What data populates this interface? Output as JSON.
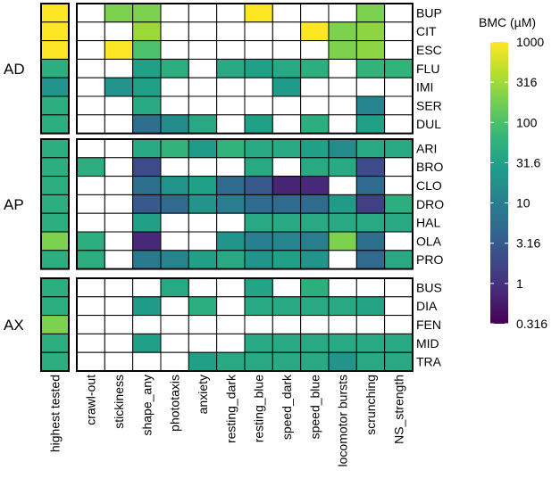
{
  "chart_data": {
    "type": "heatmap",
    "title": "",
    "legend_title": "BMC (µM)",
    "legend_ticks": [
      "1000",
      "316",
      "100",
      "31.6",
      "10",
      "3.16",
      "1",
      "0.316"
    ],
    "legend_tick_values": [
      1000,
      316,
      100,
      31.6,
      10,
      3.16,
      1,
      0.316
    ],
    "scale": {
      "type": "log10",
      "min": 0.316,
      "max": 1000,
      "palette": "viridis"
    },
    "legend_position": "right",
    "highest_tested_label": "highest tested",
    "columns": [
      "crawl-out",
      "stickiness",
      "shape_any",
      "phototaxis",
      "anxiety",
      "resting_dark",
      "resting_blue",
      "speed_dark",
      "speed_blue",
      "locomotor bursts",
      "scrunching",
      "NS_strength"
    ],
    "groups": [
      {
        "name": "AD",
        "rows": [
          {
            "chemical": "BUP",
            "highest_tested": 1000,
            "values": [
              null,
              200,
              200,
              null,
              null,
              null,
              1000,
              null,
              null,
              null,
              200,
              null
            ]
          },
          {
            "chemical": "CIT",
            "highest_tested": 1000,
            "values": [
              null,
              null,
              300,
              null,
              null,
              null,
              null,
              null,
              1000,
              200,
              250,
              null
            ]
          },
          {
            "chemical": "ESC",
            "highest_tested": 1000,
            "values": [
              null,
              1000,
              100,
              null,
              null,
              null,
              null,
              null,
              null,
              200,
              250,
              null
            ]
          },
          {
            "chemical": "FLU",
            "highest_tested": 50,
            "values": [
              null,
              null,
              30,
              50,
              null,
              40,
              30,
              40,
              50,
              null,
              60,
              60
            ]
          },
          {
            "chemical": "IMI",
            "highest_tested": 20,
            "values": [
              null,
              20,
              30,
              null,
              null,
              null,
              null,
              25,
              null,
              null,
              null,
              null
            ]
          },
          {
            "chemical": "SER",
            "highest_tested": 50,
            "values": [
              null,
              null,
              40,
              null,
              null,
              null,
              null,
              null,
              null,
              null,
              12,
              null
            ]
          },
          {
            "chemical": "DUL",
            "highest_tested": 50,
            "values": [
              null,
              null,
              6,
              15,
              40,
              null,
              30,
              null,
              50,
              null,
              30,
              null
            ]
          }
        ]
      },
      {
        "name": "AP",
        "rows": [
          {
            "chemical": "ARI",
            "highest_tested": 50,
            "values": [
              null,
              null,
              40,
              60,
              25,
              60,
              40,
              40,
              30,
              15,
              40,
              40
            ]
          },
          {
            "chemical": "BRO",
            "highest_tested": 50,
            "values": [
              50,
              null,
              2,
              null,
              null,
              null,
              40,
              null,
              40,
              40,
              2,
              null
            ]
          },
          {
            "chemical": "CLO",
            "highest_tested": 50,
            "values": [
              null,
              null,
              6,
              20,
              30,
              5,
              3,
              0.7,
              0.8,
              null,
              5,
              null
            ]
          },
          {
            "chemical": "DRO",
            "highest_tested": 50,
            "values": [
              null,
              null,
              3,
              5,
              20,
              10,
              5,
              5,
              5,
              25,
              1.5,
              50
            ]
          },
          {
            "chemical": "HAL",
            "highest_tested": 50,
            "values": [
              null,
              null,
              30,
              null,
              null,
              null,
              40,
              40,
              40,
              40,
              40,
              40
            ]
          },
          {
            "chemical": "OLA",
            "highest_tested": 200,
            "values": [
              50,
              null,
              0.8,
              null,
              null,
              20,
              10,
              12,
              10,
              200,
              6,
              null
            ]
          },
          {
            "chemical": "PRO",
            "highest_tested": 50,
            "values": [
              50,
              null,
              8,
              12,
              30,
              40,
              20,
              30,
              20,
              null,
              5,
              40
            ]
          }
        ]
      },
      {
        "name": "AX",
        "rows": [
          {
            "chemical": "BUS",
            "highest_tested": 50,
            "values": [
              null,
              null,
              null,
              40,
              null,
              null,
              35,
              null,
              50,
              null,
              null,
              null
            ]
          },
          {
            "chemical": "DIA",
            "highest_tested": 50,
            "values": [
              null,
              null,
              25,
              null,
              50,
              null,
              40,
              40,
              40,
              40,
              35,
              null
            ]
          },
          {
            "chemical": "FEN",
            "highest_tested": 200,
            "values": [
              null,
              null,
              null,
              null,
              null,
              null,
              null,
              null,
              null,
              null,
              null,
              null
            ]
          },
          {
            "chemical": "MID",
            "highest_tested": 50,
            "values": [
              null,
              null,
              30,
              null,
              null,
              null,
              40,
              40,
              40,
              40,
              40,
              40
            ]
          },
          {
            "chemical": "TRA",
            "highest_tested": 50,
            "values": [
              null,
              null,
              null,
              null,
              30,
              40,
              40,
              40,
              40,
              20,
              40,
              40
            ]
          }
        ]
      }
    ]
  }
}
